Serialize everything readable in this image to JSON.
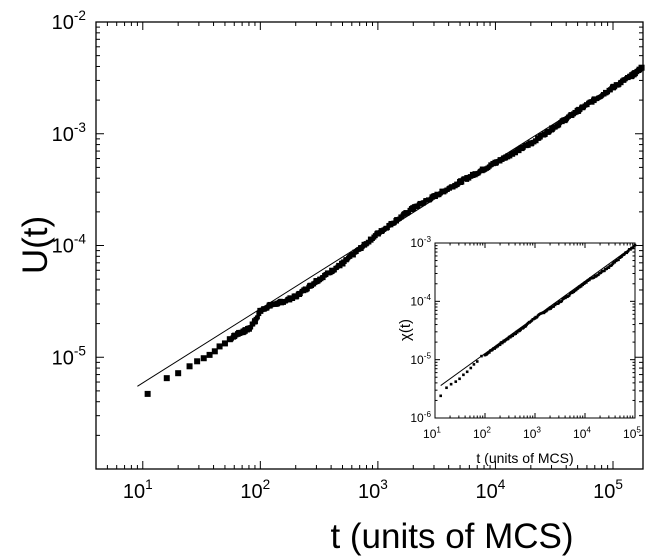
{
  "chart_data": [
    {
      "type": "scatter",
      "panel": "main",
      "xlabel": "t (units of MCS)",
      "ylabel": "U(t)",
      "xscale": "log",
      "yscale": "log",
      "xlim": [
        4,
        180000
      ],
      "ylim": [
        1e-06,
        0.01
      ],
      "grid": false,
      "xticks": [
        {
          "value": 10,
          "base": "10",
          "exp": "1"
        },
        {
          "value": 100,
          "base": "10",
          "exp": "2"
        },
        {
          "value": 1000,
          "base": "10",
          "exp": "3"
        },
        {
          "value": 10000,
          "base": "10",
          "exp": "4"
        },
        {
          "value": 100000,
          "base": "10",
          "exp": "5"
        }
      ],
      "yticks": [
        {
          "value": 1e-05,
          "base": "10",
          "exp": "-5"
        },
        {
          "value": 0.0001,
          "base": "10",
          "exp": "-4"
        },
        {
          "value": 0.001,
          "base": "10",
          "exp": "-3"
        },
        {
          "value": 0.01,
          "base": "10",
          "exp": "-2"
        }
      ],
      "series": [
        {
          "marker": "square",
          "x": [
            11,
            16,
            20,
            25,
            29,
            33,
            37,
            41,
            45,
            50,
            55,
            60,
            66,
            72,
            80,
            90,
            100,
            120,
            150,
            200,
            300,
            500,
            1000,
            2000,
            5000,
            10000,
            20000,
            50000,
            100000,
            150000,
            175000
          ],
          "y": [
            4.7e-06,
            6.5e-06,
            7.2e-06,
            8.3e-06,
            9.2e-06,
            9.8e-06,
            1.05e-05,
            1.13e-05,
            1.25e-05,
            1.33e-05,
            1.45e-05,
            1.55e-05,
            1.65e-05,
            1.7e-05,
            1.8e-05,
            2.1e-05,
            2.6e-05,
            2.9e-05,
            3.1e-05,
            3.5e-05,
            4.8e-05,
            6.9e-05,
            0.000128,
            0.000216,
            0.00037,
            0.00055,
            0.00082,
            0.0016,
            0.0026,
            0.0034,
            0.0039
          ]
        },
        {
          "kind": "fit-line",
          "x": [
            9,
            180000
          ],
          "y": [
            5.5e-06,
            0.0039
          ]
        }
      ]
    },
    {
      "type": "scatter",
      "panel": "inset",
      "xlabel": "t (units of MCS)",
      "ylabel": "χ(t)",
      "xscale": "log",
      "yscale": "log",
      "xlim": [
        10,
        100000
      ],
      "ylim": [
        1e-06,
        0.001
      ],
      "grid": false,
      "xticks": [
        {
          "value": 10,
          "base": "10",
          "exp": "1"
        },
        {
          "value": 100,
          "base": "10",
          "exp": "2"
        },
        {
          "value": 1000,
          "base": "10",
          "exp": "3"
        },
        {
          "value": 10000,
          "base": "10",
          "exp": "4"
        },
        {
          "value": 100000,
          "base": "10",
          "exp": "5"
        }
      ],
      "yticks": [
        {
          "value": 1e-06,
          "base": "10",
          "exp": "-6"
        },
        {
          "value": 1e-05,
          "base": "10",
          "exp": "-5"
        },
        {
          "value": 0.0001,
          "base": "10",
          "exp": "-4"
        },
        {
          "value": 0.001,
          "base": "10",
          "exp": "-3"
        }
      ],
      "series": [
        {
          "marker": "dot",
          "x": [
            13,
            17,
            21,
            26,
            31,
            37,
            44,
            52,
            60,
            70,
            85,
            100,
            200,
            500,
            1000,
            3000,
            10000,
            30000,
            100000
          ],
          "y": [
            2.4e-06,
            3.3e-06,
            3.8e-06,
            4.2e-06,
            4.7e-06,
            5.5e-06,
            6.2e-06,
            7.2e-06,
            8.3e-06,
            9.3e-06,
            1.15e-05,
            1.2e-05,
            1.85e-05,
            3.2e-05,
            5.2e-05,
            9.5e-05,
            0.00021,
            0.00038,
            0.00092
          ]
        },
        {
          "kind": "fit-line",
          "x": [
            13,
            100000
          ],
          "y": [
            3.6e-06,
            0.00092
          ]
        }
      ]
    }
  ]
}
